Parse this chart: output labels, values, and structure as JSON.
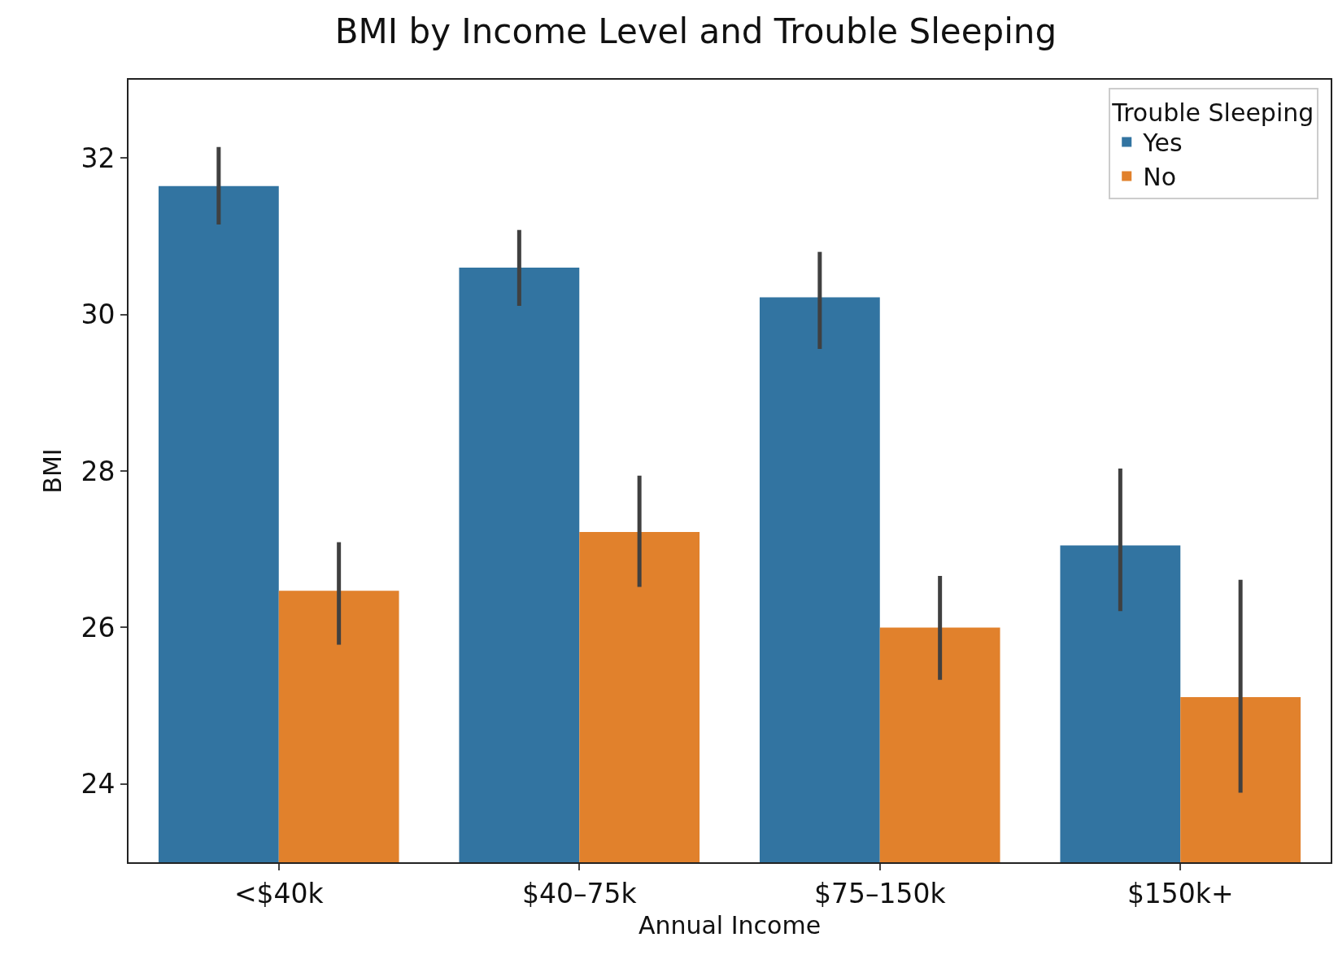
{
  "chart_data": {
    "type": "bar",
    "title": "BMI by Income Level and Trouble Sleeping",
    "xlabel": "Annual Income",
    "ylabel": "BMI",
    "legend_title": "Trouble Sleeping",
    "categories": [
      "<$40k",
      "$40–75k",
      "$75–150k",
      "$150k+"
    ],
    "series": [
      {
        "name": "Yes",
        "color": "#3274a1",
        "values": [
          31.64,
          30.6,
          30.22,
          27.05
        ],
        "errors": [
          [
            31.15,
            32.14
          ],
          [
            30.11,
            31.08
          ],
          [
            29.56,
            30.8
          ],
          [
            26.21,
            28.03
          ]
        ]
      },
      {
        "name": "No",
        "color": "#e1812c",
        "values": [
          26.47,
          27.22,
          26.0,
          25.11
        ],
        "errors": [
          [
            25.78,
            27.09
          ],
          [
            26.52,
            27.94
          ],
          [
            25.33,
            26.66
          ],
          [
            23.89,
            26.61
          ]
        ]
      }
    ],
    "ylim": [
      23.0,
      33.0
    ],
    "yticks": [
      24,
      26,
      28,
      30,
      32
    ],
    "legend": "top right"
  }
}
